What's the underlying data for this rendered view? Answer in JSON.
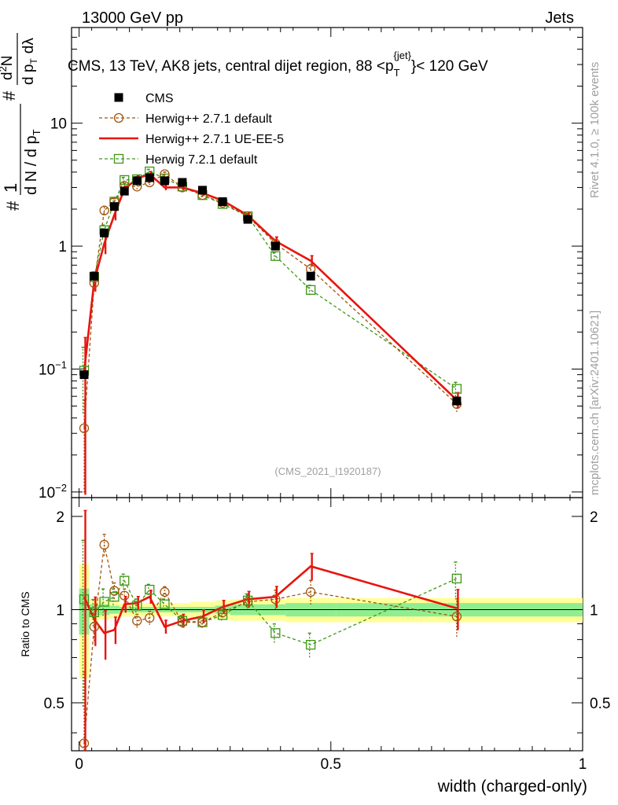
{
  "header": {
    "left": "13000 GeV pp",
    "right": "Jets"
  },
  "side_text": {
    "rivet": "Rivet 4.1.0, ≥ 100k events",
    "mcplots": "mcplots.cern.ch [arXiv:2401.10621]"
  },
  "chart_data": {
    "type": "scatter",
    "title": "CMS, 13 TeV, AK8 jets, central dijet region, 88 <p",
    "title_sup": "{jet}",
    "title_sub": "T",
    "title_tail": "}< 120 GeV",
    "watermark": "(CMS_2021_I1920187)",
    "xlabel": "width (charged-only)",
    "ylabel": {
      "hash1": "#",
      "one": "1",
      "dn": "d N / d p",
      "dn_sub": "T",
      "hash2": "#",
      "d2n": "d",
      "d2n_sup": "2",
      "d2n_n": "N",
      "dpt": "d p",
      "dpt_sub": "T",
      "dl": "dλ"
    },
    "ratio_ylabel": "Ratio to CMS",
    "xlim": [
      -0.015,
      1.0
    ],
    "ylim": [
      0.009,
      60
    ],
    "ratio_ylim": [
      0.35,
      2.3
    ],
    "x_ticks": [
      {
        "value": 0,
        "label": "0"
      },
      {
        "value": 0.5,
        "label": "0.5"
      },
      {
        "value": 1,
        "label": "1"
      }
    ],
    "y_ticks": [
      {
        "value": 0.01,
        "base": "10",
        "exp": "−2"
      },
      {
        "value": 0.1,
        "base": "10",
        "exp": "−1"
      },
      {
        "value": 1,
        "label": "1"
      },
      {
        "value": 10,
        "label": "10"
      }
    ],
    "ratio_ticks": [
      {
        "value": 0.5,
        "label": "0.5"
      },
      {
        "value": 1,
        "label": "1"
      },
      {
        "value": 2,
        "label": "2"
      }
    ],
    "x": [
      0.01,
      0.03,
      0.05,
      0.07,
      0.09,
      0.115,
      0.14,
      0.17,
      0.205,
      0.245,
      0.285,
      0.335,
      0.39,
      0.46,
      0.75
    ],
    "bins": [
      0,
      0.02,
      0.04,
      0.06,
      0.08,
      0.1,
      0.13,
      0.15,
      0.19,
      0.22,
      0.27,
      0.3,
      0.37,
      0.41,
      0.51,
      1.0
    ],
    "legend": [
      {
        "name": "CMS",
        "color": "#000000",
        "marker": "square-filled",
        "line": "none"
      },
      {
        "name": "Herwig++ 2.7.1 default",
        "color": "#a0560f",
        "marker": "circle-open",
        "line": "dashed"
      },
      {
        "name": "Herwig++ 2.7.1 UE-EE-5",
        "color": "#e8140e",
        "marker": "none",
        "line": "solid"
      },
      {
        "name": "Herwig 7.2.1 default",
        "color": "#3e9616",
        "marker": "square-open",
        "line": "dashed"
      }
    ],
    "series": [
      {
        "name": "CMS",
        "values": [
          0.09,
          0.57,
          1.28,
          2.1,
          2.8,
          3.4,
          3.6,
          3.4,
          3.3,
          2.85,
          2.3,
          1.65,
          1.0,
          0.57,
          0.055
        ]
      },
      {
        "name": "Herwig++ 2.7.1 default",
        "values": [
          0.033,
          0.5,
          1.95,
          2.3,
          3.1,
          3.05,
          3.3,
          3.85,
          3.0,
          2.6,
          2.25,
          1.75,
          1.05,
          0.65,
          0.052
        ]
      },
      {
        "name": "Herwig++ 2.7.1 UE-EE-5",
        "values": [
          0.095,
          0.52,
          1.05,
          1.8,
          2.9,
          3.55,
          3.85,
          3.0,
          3.0,
          2.7,
          2.35,
          1.78,
          1.1,
          0.76,
          0.056
        ]
      },
      {
        "name": "Herwig 7.2.1 default",
        "values": [
          0.097,
          0.56,
          1.35,
          2.3,
          3.45,
          3.5,
          4.05,
          3.55,
          3.05,
          2.6,
          2.2,
          1.75,
          0.83,
          0.44,
          0.069
        ]
      }
    ],
    "rel_errors": {
      "Herwig++ 2.7.1 default": [
        0.7,
        0.1,
        0.08,
        0.06,
        0.05,
        0.05,
        0.05,
        0.04,
        0.04,
        0.04,
        0.04,
        0.05,
        0.07,
        0.09,
        0.14
      ],
      "Herwig++ 2.7.1 UE-EE-5": [
        0.9,
        0.18,
        0.18,
        0.1,
        0.06,
        0.05,
        0.05,
        0.05,
        0.05,
        0.05,
        0.05,
        0.06,
        0.08,
        0.1,
        0.15
      ],
      "Herwig 7.2.1 default": [
        0.55,
        0.1,
        0.1,
        0.06,
        0.05,
        0.05,
        0.04,
        0.04,
        0.04,
        0.04,
        0.04,
        0.05,
        0.07,
        0.09,
        0.13
      ]
    },
    "ratio": {
      "Herwig++ 2.7.1 default": [
        0.37,
        0.88,
        1.62,
        1.15,
        1.11,
        0.92,
        0.94,
        1.14,
        0.91,
        0.91,
        0.98,
        1.06,
        1.08,
        1.14,
        0.95
      ],
      "Herwig++ 2.7.1 UE-EE-5": [
        1.1,
        0.93,
        0.84,
        0.86,
        1.04,
        1.05,
        1.1,
        0.88,
        0.92,
        0.95,
        1.02,
        1.08,
        1.1,
        1.38,
        1.01
      ],
      "Herwig 7.2.1 default": [
        1.08,
        0.98,
        1.06,
        1.1,
        1.24,
        1.03,
        1.16,
        1.04,
        0.92,
        0.91,
        0.96,
        1.07,
        0.84,
        0.77,
        1.26
      ]
    },
    "band": {
      "stat_low": [
        0.83,
        0.96,
        0.96,
        0.97,
        0.98,
        0.98,
        0.98,
        0.98,
        0.98,
        0.98,
        0.97,
        0.96,
        0.96,
        0.95,
        0.95
      ],
      "stat_high": [
        1.17,
        1.04,
        1.04,
        1.03,
        1.02,
        1.02,
        1.02,
        1.02,
        1.02,
        1.02,
        1.03,
        1.04,
        1.04,
        1.05,
        1.05
      ],
      "syst_low": [
        0.6,
        0.92,
        0.93,
        0.94,
        0.95,
        0.95,
        0.95,
        0.95,
        0.95,
        0.94,
        0.93,
        0.92,
        0.92,
        0.91,
        0.91
      ],
      "syst_high": [
        1.4,
        1.08,
        1.07,
        1.06,
        1.05,
        1.05,
        1.05,
        1.05,
        1.05,
        1.06,
        1.07,
        1.08,
        1.08,
        1.09,
        1.09
      ]
    },
    "colors": {
      "band_stat": "#90ee90",
      "band_syst": "#ffff99",
      "axis": "#000000"
    }
  }
}
